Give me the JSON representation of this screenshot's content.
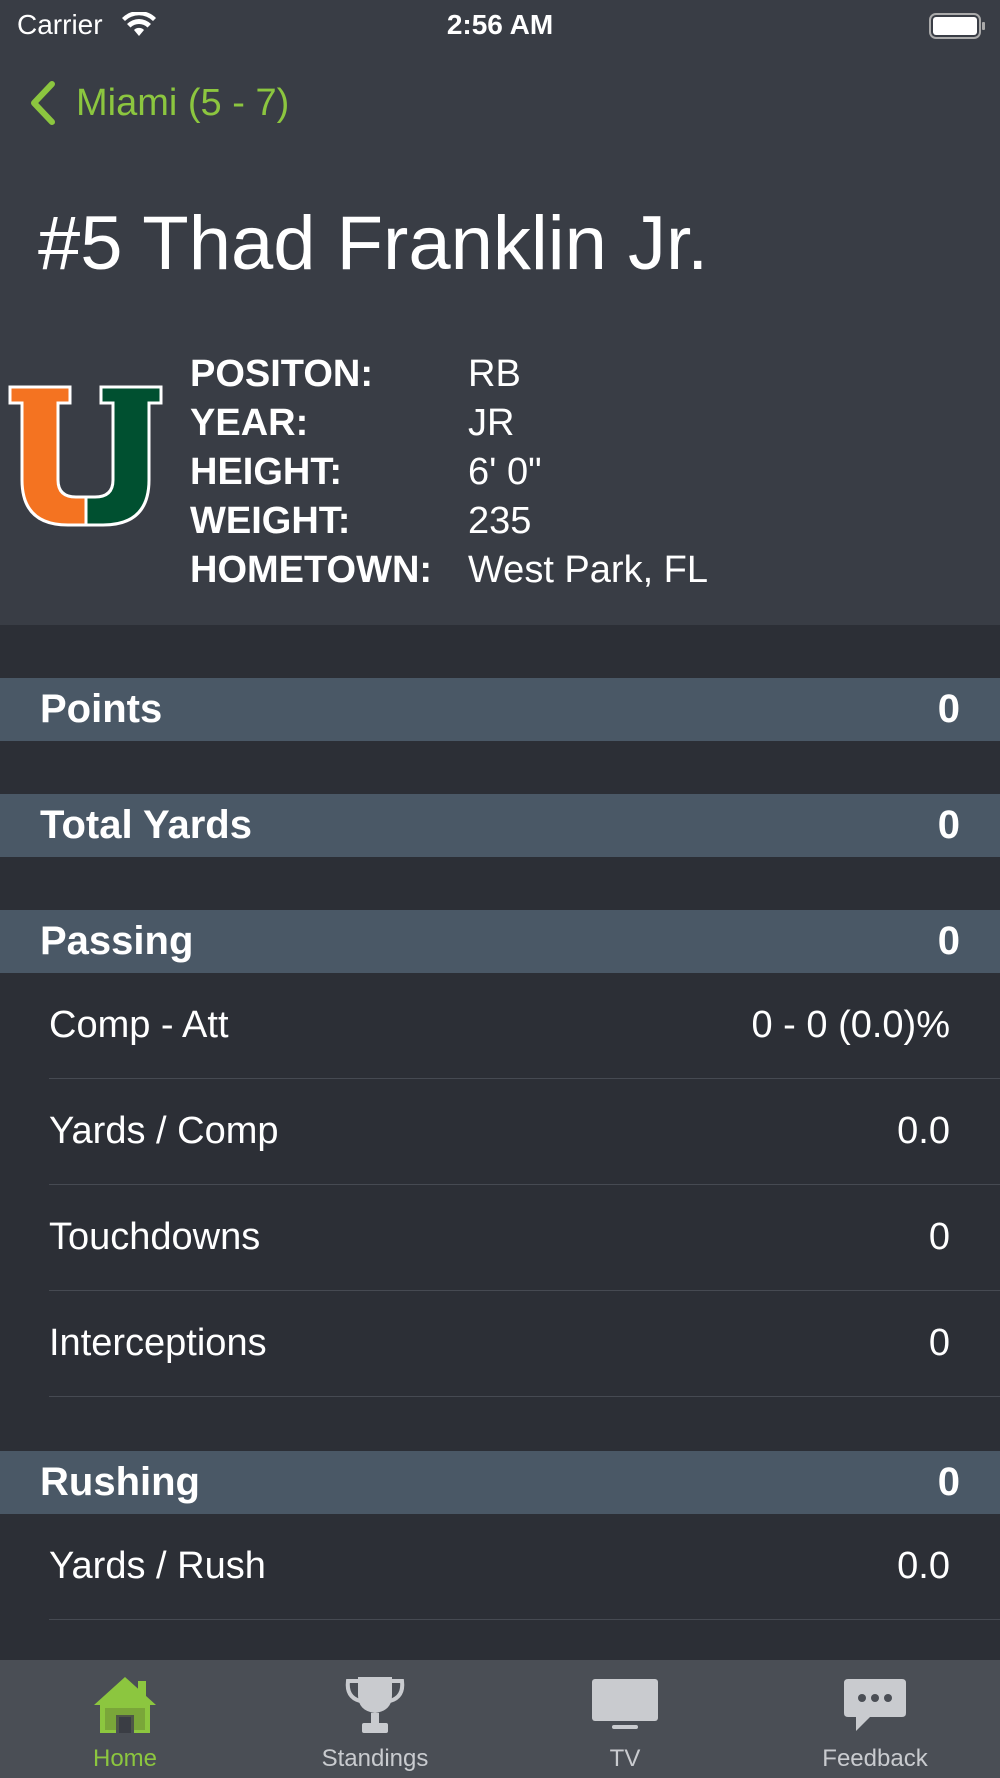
{
  "status_bar": {
    "carrier": "Carrier",
    "time": "2:56 AM"
  },
  "nav": {
    "back_label": "Miami (5 - 7)"
  },
  "player": {
    "name": "#5 Thad Franklin Jr.",
    "info": [
      {
        "label": "POSITON:",
        "value": "RB"
      },
      {
        "label": "YEAR:",
        "value": "JR"
      },
      {
        "label": "HEIGHT:",
        "value": "6' 0\""
      },
      {
        "label": "WEIGHT:",
        "value": "235"
      },
      {
        "label": "HOMETOWN:",
        "value": "West Park, FL"
      }
    ]
  },
  "stats": {
    "points": {
      "title": "Points",
      "value": "0"
    },
    "total_yards": {
      "title": "Total Yards",
      "value": "0"
    },
    "passing": {
      "title": "Passing",
      "value": "0",
      "rows": [
        {
          "label": "Comp - Att",
          "value": "0 - 0 (0.0)%"
        },
        {
          "label": "Yards / Comp",
          "value": "0.0"
        },
        {
          "label": "Touchdowns",
          "value": "0"
        },
        {
          "label": "Interceptions",
          "value": "0"
        }
      ]
    },
    "rushing": {
      "title": "Rushing",
      "value": "0",
      "rows": [
        {
          "label": "Yards / Rush",
          "value": "0.0"
        }
      ]
    }
  },
  "tabs": [
    {
      "label": "Home",
      "icon": "home-icon",
      "active": true
    },
    {
      "label": "Standings",
      "icon": "trophy-icon",
      "active": false
    },
    {
      "label": "TV",
      "icon": "tv-icon",
      "active": false
    },
    {
      "label": "Feedback",
      "icon": "chat-icon",
      "active": false
    }
  ],
  "colors": {
    "accent": "#8cc63f",
    "header_bg": "#393d45",
    "body_bg": "#2c2f36",
    "section_bg": "#4a5866",
    "tabbar_bg": "#4a4e55",
    "logo_orange": "#f47321",
    "logo_green": "#005030"
  }
}
